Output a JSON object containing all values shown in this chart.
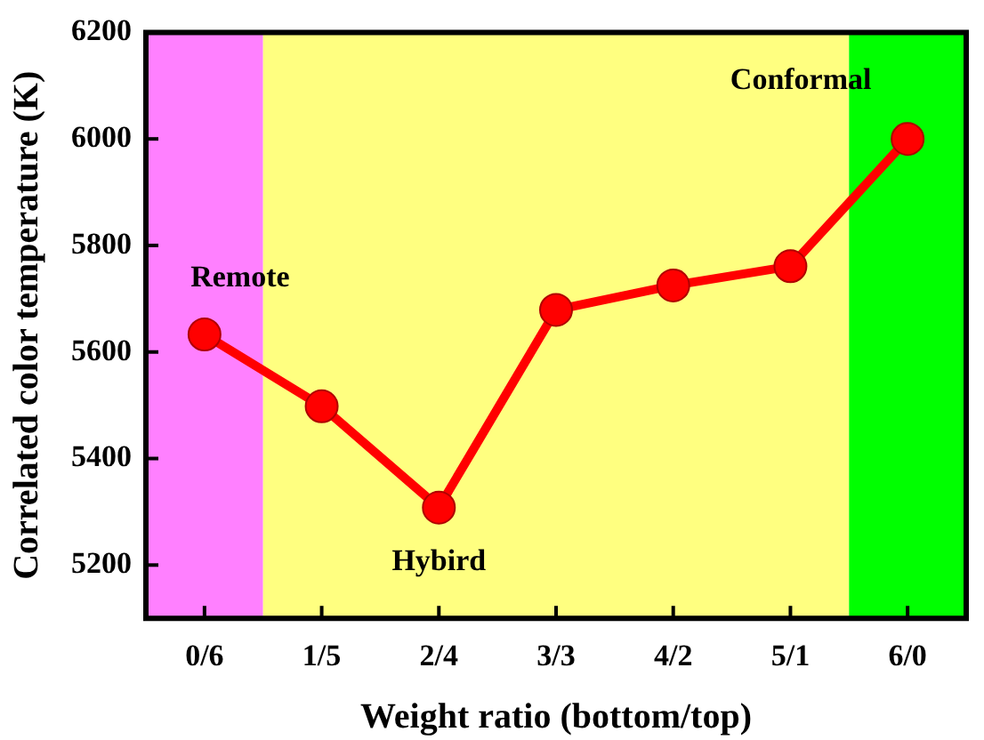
{
  "chart_data": {
    "type": "line",
    "xlabel": "Weight ratio (bottom/top)",
    "ylabel": "Correlated color temperature (K)",
    "categories": [
      "0/6",
      "1/5",
      "2/4",
      "3/3",
      "4/2",
      "5/1",
      "6/0"
    ],
    "series": [
      {
        "color": "#ff0000",
        "values": [
          5633,
          5498,
          5308,
          5679,
          5725,
          5761,
          6000
        ]
      }
    ],
    "ylim": [
      5100,
      6200
    ],
    "yticks": [
      5200,
      5400,
      5600,
      5800,
      6000,
      6200
    ],
    "bands": [
      {
        "axis": "x",
        "from": "0/6",
        "to": "0/6",
        "color": "#ff80ff"
      },
      {
        "axis": "x",
        "from": "1/5",
        "to": "5/1",
        "color": "#ffff80"
      },
      {
        "axis": "x",
        "from": "6/0",
        "to": "6/0",
        "color": "#00ff00"
      }
    ],
    "annotations": [
      {
        "text": "Remote",
        "x": "0/6",
        "y": 5633
      },
      {
        "text": "Hybird",
        "x": "2/4",
        "y": 5308
      },
      {
        "text": "Conformal",
        "x": "6/0",
        "y": 6000
      }
    ],
    "marker": "circle",
    "line_style": "solid",
    "legend": false
  }
}
